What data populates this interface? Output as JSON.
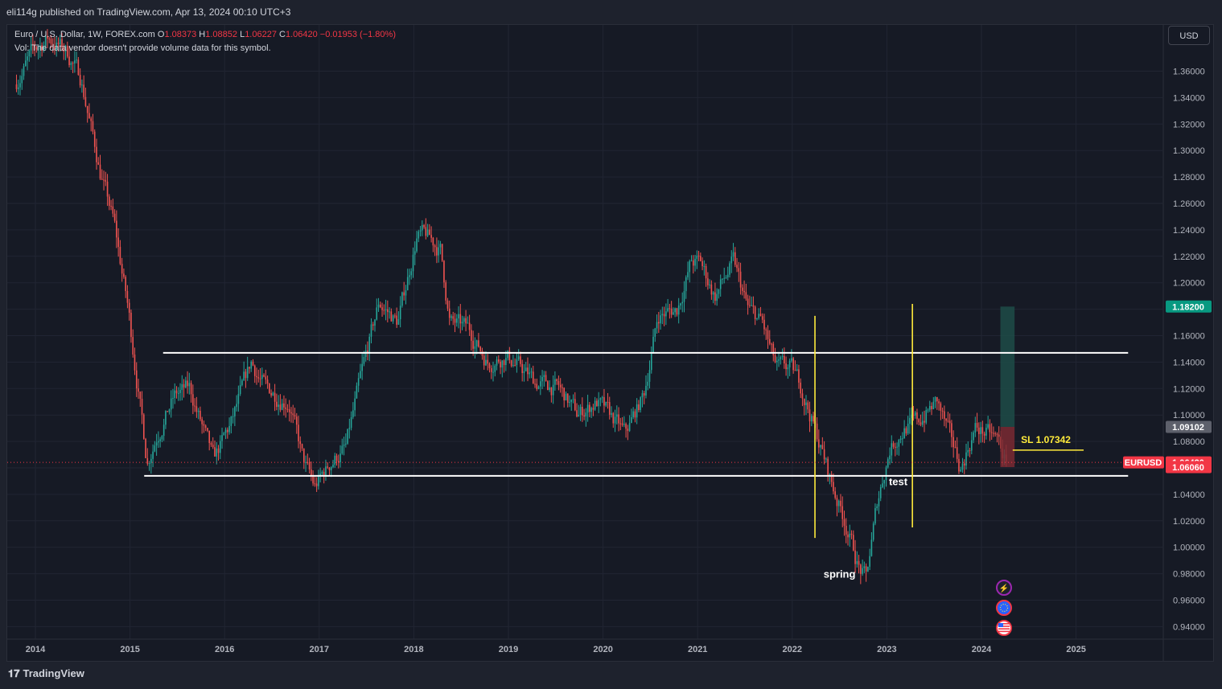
{
  "header": {
    "published_line": "eli114g published on TradingView.com, Apr 13, 2024 00:10 UTC+3"
  },
  "legend": {
    "symbol_line": "Euro / U.S. Dollar, 1W, FOREX.com",
    "open_label": "O",
    "open": "1.08373",
    "high_label": "H",
    "high": "1.08852",
    "low_label": "L",
    "low": "1.06227",
    "close_label": "C",
    "close": "1.06420",
    "change": "−0.01953 (−1.80%)",
    "volume_note": "Vol: The data vendor doesn't provide volume data for this symbol."
  },
  "currency_button": "USD",
  "footer": {
    "brand": "TradingView",
    "brand_glyph": "𝟏𝟕"
  },
  "colors": {
    "up": "#26a69a",
    "down": "#ef5350",
    "background": "#161a25",
    "level_line": "#ffffff",
    "vertical_marker": "#ffeb3b",
    "target_zone": "#1d4c48",
    "stop_zone": "#7a2a33",
    "sl_line": "#ffeb3b",
    "price_tag": "#f23645",
    "target_tag": "#089981"
  },
  "chart_data": {
    "type": "candlestick",
    "symbol": "EURUSD",
    "timeframe": "1W",
    "x_ticks": [
      "2014",
      "2015",
      "2016",
      "2017",
      "2018",
      "2019",
      "2020",
      "2021",
      "2022",
      "2023",
      "2024",
      "2025"
    ],
    "y_ticks": [
      "1.36000",
      "1.34000",
      "1.32000",
      "1.30000",
      "1.28000",
      "1.26000",
      "1.24000",
      "1.22000",
      "1.20000",
      "1.18000",
      "1.16000",
      "1.14000",
      "1.12000",
      "1.10000",
      "1.08000",
      "1.06000",
      "1.04000",
      "1.02000",
      "1.00000",
      "0.98000",
      "0.96000",
      "0.94000"
    ],
    "ylim": [
      0.925,
      1.385
    ],
    "xlim": [
      2013.7,
      2025.5
    ],
    "price_path": [
      [
        2013.8,
        1.35
      ],
      [
        2014.0,
        1.375
      ],
      [
        2014.15,
        1.385
      ],
      [
        2014.35,
        1.375
      ],
      [
        2014.5,
        1.355
      ],
      [
        2014.7,
        1.285
      ],
      [
        2014.85,
        1.245
      ],
      [
        2015.0,
        1.18
      ],
      [
        2015.2,
        1.065
      ],
      [
        2015.3,
        1.085
      ],
      [
        2015.5,
        1.115
      ],
      [
        2015.65,
        1.12
      ],
      [
        2015.9,
        1.065
      ],
      [
        2016.1,
        1.095
      ],
      [
        2016.3,
        1.14
      ],
      [
        2016.45,
        1.12
      ],
      [
        2016.7,
        1.11
      ],
      [
        2016.85,
        1.065
      ],
      [
        2016.97,
        1.045
      ],
      [
        2017.15,
        1.065
      ],
      [
        2017.3,
        1.075
      ],
      [
        2017.45,
        1.125
      ],
      [
        2017.65,
        1.185
      ],
      [
        2017.85,
        1.17
      ],
      [
        2018.05,
        1.235
      ],
      [
        2018.15,
        1.235
      ],
      [
        2018.3,
        1.225
      ],
      [
        2018.4,
        1.17
      ],
      [
        2018.6,
        1.165
      ],
      [
        2018.8,
        1.14
      ],
      [
        2019.0,
        1.145
      ],
      [
        2019.3,
        1.125
      ],
      [
        2019.55,
        1.12
      ],
      [
        2019.75,
        1.1
      ],
      [
        2019.95,
        1.11
      ],
      [
        2020.15,
        1.095
      ],
      [
        2020.25,
        1.085
      ],
      [
        2020.45,
        1.115
      ],
      [
        2020.6,
        1.175
      ],
      [
        2020.8,
        1.18
      ],
      [
        2020.95,
        1.215
      ],
      [
        2021.05,
        1.215
      ],
      [
        2021.2,
        1.19
      ],
      [
        2021.4,
        1.215
      ],
      [
        2021.55,
        1.18
      ],
      [
        2021.7,
        1.17
      ],
      [
        2021.85,
        1.135
      ],
      [
        2022.0,
        1.135
      ],
      [
        2022.1,
        1.125
      ],
      [
        2022.3,
        1.08
      ],
      [
        2022.45,
        1.045
      ],
      [
        2022.6,
        1.015
      ],
      [
        2022.72,
        0.985
      ],
      [
        2022.8,
        0.975
      ],
      [
        2022.92,
        1.035
      ],
      [
        2023.05,
        1.075
      ],
      [
        2023.2,
        1.09
      ],
      [
        2023.35,
        1.095
      ],
      [
        2023.55,
        1.11
      ],
      [
        2023.7,
        1.08
      ],
      [
        2023.8,
        1.06
      ],
      [
        2023.95,
        1.09
      ],
      [
        2024.1,
        1.085
      ],
      [
        2024.2,
        1.08
      ],
      [
        2024.28,
        1.064
      ]
    ],
    "horizontal_levels": [
      {
        "price": 1.147,
        "x_start": 2015.35,
        "x_end": 2025.55
      },
      {
        "price": 1.054,
        "x_start": 2015.15,
        "x_end": 2025.55
      }
    ],
    "vertical_markers": [
      {
        "x": 2022.24,
        "y_top": 1.175,
        "y_bottom": 1.007
      },
      {
        "x": 2023.27,
        "y_top": 1.184,
        "y_bottom": 1.015
      }
    ],
    "annotations": [
      {
        "text": "spring",
        "x": 2022.5,
        "y": 0.977
      },
      {
        "text": "test",
        "x": 2023.12,
        "y": 1.047
      }
    ],
    "position_tool": {
      "x_start": 2024.2,
      "x_end": 2024.35,
      "target": 1.182,
      "entry": 1.09102,
      "stop": 1.0606,
      "sl_label": "SL 1.07342",
      "sl_price": 1.07342,
      "sl_x_end": 2025.08
    },
    "price_tags": [
      {
        "text": "1.18200",
        "price": 1.182,
        "kind": "target"
      },
      {
        "text": "1.09102",
        "price": 1.09102,
        "kind": "entry"
      },
      {
        "text": "1.06420",
        "price": 1.0642,
        "kind": "last",
        "label": "EURUSD"
      },
      {
        "text": "1.06060",
        "price": 1.0606,
        "kind": "stop"
      }
    ],
    "last_price": 1.0642
  }
}
